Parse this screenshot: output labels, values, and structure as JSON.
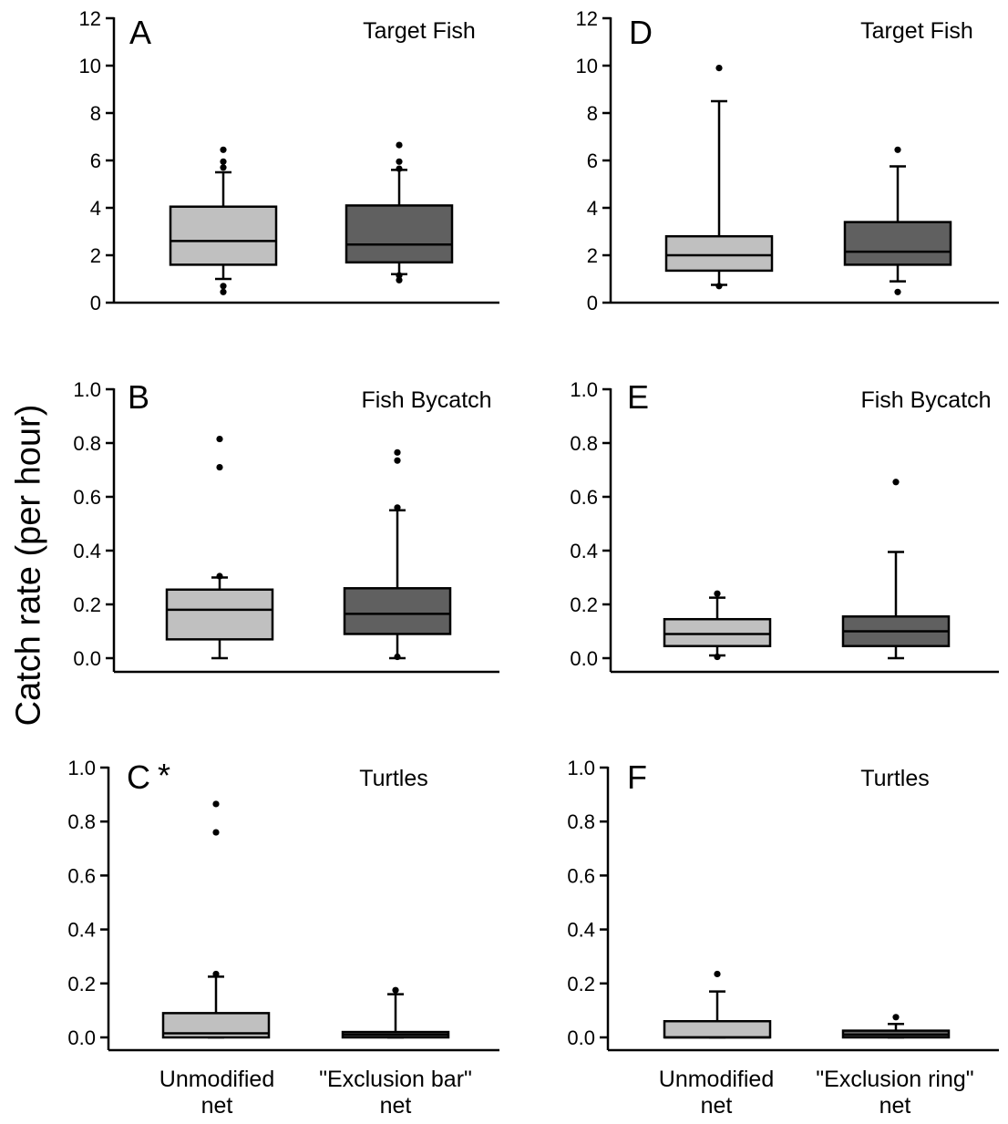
{
  "figure": {
    "ylabel": "Catch rate (per hour)"
  },
  "chart_data": [
    {
      "type": "box",
      "panel_letter": "A",
      "title": "Target Fish",
      "categories": [
        "Unmodified net",
        "\"Exclusion bar\" net"
      ],
      "ylim": [
        0,
        12
      ],
      "yticks": [
        0,
        2,
        4,
        6,
        8,
        10,
        12
      ],
      "ytick_labels": [
        "0",
        "2",
        "4",
        "6",
        "8",
        "10",
        "12"
      ],
      "series": [
        {
          "category": "Unmodified net",
          "color": "#c0c0c0",
          "q1": 1.6,
          "median": 2.6,
          "q3": 4.05,
          "whisker_low": 1.0,
          "whisker_high": 5.5,
          "outliers": [
            0.45,
            0.7,
            5.7,
            5.95,
            6.45
          ]
        },
        {
          "category": "\"Exclusion bar\" net",
          "color": "#606060",
          "q1": 1.7,
          "median": 2.45,
          "q3": 4.1,
          "whisker_low": 1.2,
          "whisker_high": 5.6,
          "outliers": [
            0.95,
            1.15,
            5.65,
            5.95,
            6.65
          ]
        }
      ]
    },
    {
      "type": "box",
      "panel_letter": "B",
      "title": "Fish Bycatch",
      "categories": [
        "Unmodified net",
        "\"Exclusion bar\" net"
      ],
      "ylim": [
        0,
        1.0
      ],
      "yticks": [
        0,
        0.2,
        0.4,
        0.6,
        0.8,
        1.0
      ],
      "ytick_labels": [
        "0.0",
        "0.2",
        "0.4",
        "0.6",
        "0.8",
        "1.0"
      ],
      "series": [
        {
          "category": "Unmodified net",
          "color": "#c0c0c0",
          "q1": 0.07,
          "median": 0.18,
          "q3": 0.255,
          "whisker_low": 0.0,
          "whisker_high": 0.3,
          "outliers": [
            0.305,
            0.71,
            0.815
          ]
        },
        {
          "category": "\"Exclusion bar\" net",
          "color": "#606060",
          "q1": 0.09,
          "median": 0.165,
          "q3": 0.26,
          "whisker_low": 0.0,
          "whisker_high": 0.55,
          "outliers": [
            0.005,
            0.56,
            0.735,
            0.765
          ]
        }
      ]
    },
    {
      "type": "box",
      "panel_letter": "C",
      "marker": "*",
      "title": "Turtles",
      "categories": [
        "Unmodified net",
        "\"Exclusion bar\" net"
      ],
      "ylim": [
        0,
        1.0
      ],
      "yticks": [
        0,
        0.2,
        0.4,
        0.6,
        0.8,
        1.0
      ],
      "ytick_labels": [
        "0.0",
        "0.2",
        "0.4",
        "0.6",
        "0.8",
        "1.0"
      ],
      "series": [
        {
          "category": "Unmodified net",
          "color": "#c0c0c0",
          "q1": 0.0,
          "median": 0.015,
          "q3": 0.09,
          "whisker_low": 0.0,
          "whisker_high": 0.225,
          "outliers": [
            0.235,
            0.76,
            0.865
          ]
        },
        {
          "category": "\"Exclusion bar\" net",
          "color": "#606060",
          "q1": 0.0,
          "median": 0.01,
          "q3": 0.02,
          "whisker_low": 0.0,
          "whisker_high": 0.16,
          "outliers": [
            0.175
          ]
        }
      ]
    },
    {
      "type": "box",
      "panel_letter": "D",
      "title": "Target Fish",
      "categories": [
        "Unmodified net",
        "\"Exclusion ring\" net"
      ],
      "ylim": [
        0,
        12
      ],
      "yticks": [
        0,
        2,
        4,
        6,
        8,
        10,
        12
      ],
      "ytick_labels": [
        "0",
        "2",
        "4",
        "6",
        "8",
        "10",
        "12"
      ],
      "series": [
        {
          "category": "Unmodified net",
          "color": "#c0c0c0",
          "q1": 1.35,
          "median": 2.0,
          "q3": 2.8,
          "whisker_low": 0.75,
          "whisker_high": 8.5,
          "outliers": [
            0.7,
            9.9
          ]
        },
        {
          "category": "\"Exclusion ring\" net",
          "color": "#606060",
          "q1": 1.6,
          "median": 2.15,
          "q3": 3.4,
          "whisker_low": 0.9,
          "whisker_high": 5.75,
          "outliers": [
            0.45,
            6.45
          ]
        }
      ]
    },
    {
      "type": "box",
      "panel_letter": "E",
      "title": "Fish Bycatch",
      "categories": [
        "Unmodified net",
        "\"Exclusion ring\" net"
      ],
      "ylim": [
        0,
        1.0
      ],
      "yticks": [
        0,
        0.2,
        0.4,
        0.6,
        0.8,
        1.0
      ],
      "ytick_labels": [
        "0.0",
        "0.2",
        "0.4",
        "0.6",
        "0.8",
        "1.0"
      ],
      "series": [
        {
          "category": "Unmodified net",
          "color": "#c0c0c0",
          "q1": 0.045,
          "median": 0.09,
          "q3": 0.145,
          "whisker_low": 0.01,
          "whisker_high": 0.225,
          "outliers": [
            0.005,
            0.24
          ]
        },
        {
          "category": "\"Exclusion ring\" net",
          "color": "#606060",
          "q1": 0.045,
          "median": 0.1,
          "q3": 0.155,
          "whisker_low": 0.0,
          "whisker_high": 0.395,
          "outliers": [
            0.655
          ]
        }
      ]
    },
    {
      "type": "box",
      "panel_letter": "F",
      "title": "Turtles",
      "categories": [
        "Unmodified net",
        "\"Exclusion ring\" net"
      ],
      "ylim": [
        0,
        1.0
      ],
      "yticks": [
        0,
        0.2,
        0.4,
        0.6,
        0.8,
        1.0
      ],
      "ytick_labels": [
        "0.0",
        "0.2",
        "0.4",
        "0.6",
        "0.8",
        "1.0"
      ],
      "series": [
        {
          "category": "Unmodified net",
          "color": "#c0c0c0",
          "q1": 0.0,
          "median": 0.0,
          "q3": 0.06,
          "whisker_low": 0.0,
          "whisker_high": 0.17,
          "outliers": [
            0.235
          ]
        },
        {
          "category": "\"Exclusion ring\" net",
          "color": "#606060",
          "q1": 0.0,
          "median": 0.01,
          "q3": 0.025,
          "whisker_low": 0.0,
          "whisker_high": 0.05,
          "outliers": [
            0.075
          ]
        }
      ]
    }
  ],
  "category_labels": {
    "left": [
      {
        "line1": "Unmodified",
        "line2": "net"
      },
      {
        "line1": "\"Exclusion bar\"",
        "line2": "net"
      }
    ],
    "right": [
      {
        "line1": "Unmodified",
        "line2": "net"
      },
      {
        "line1": "\"Exclusion ring\"",
        "line2": "net"
      }
    ]
  }
}
